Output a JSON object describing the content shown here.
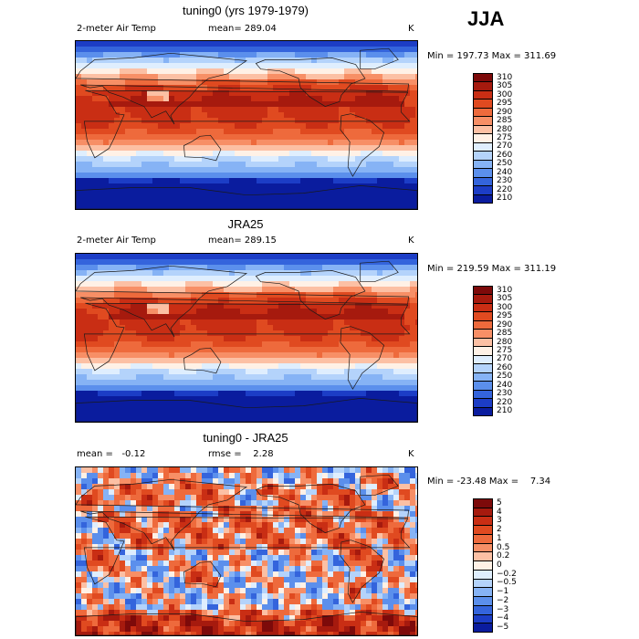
{
  "season_label": "JJA",
  "panels": [
    {
      "title": "tuning0 (yrs 1979-1979)",
      "left_label": "2-meter Air Temp",
      "center_label": "mean= 289.04",
      "right_label": "K",
      "minmax": "Min = 197.73 Max = 311.69"
    },
    {
      "title": "JRA25",
      "left_label": "2-meter Air Temp",
      "center_label": "mean= 289.15",
      "right_label": "K",
      "minmax": "Min = 219.59 Max = 311.19"
    },
    {
      "title": "tuning0 - JRA25",
      "left_label": "mean =   -0.12",
      "center_label": "rmse =    2.28",
      "right_label": "K",
      "minmax": "Min = -23.48 Max =    7.34"
    }
  ],
  "chart_data": [
    {
      "type": "heatmap",
      "title": "tuning0 (yrs 1979-1979)",
      "variable": "2-meter Air Temp",
      "units": "K",
      "mean": 289.04,
      "min": 197.73,
      "max": 311.69,
      "levels": [
        "310",
        "305",
        "300",
        "295",
        "290",
        "285",
        "280",
        "275",
        "270",
        "260",
        "250",
        "240",
        "230",
        "220",
        "210"
      ],
      "colors": [
        "#7d0a0a",
        "#a61a0e",
        "#c92e14",
        "#e04a20",
        "#ee6a3c",
        "#f78f66",
        "#fcc0a4",
        "#fff1e6",
        "#dfeefe",
        "#b4d3fb",
        "#86b3f5",
        "#5b8fec",
        "#3464dc",
        "#1c3dc6",
        "#0a1c9e"
      ]
    },
    {
      "type": "heatmap",
      "title": "JRA25",
      "variable": "2-meter Air Temp",
      "units": "K",
      "mean": 289.15,
      "min": 219.59,
      "max": 311.19,
      "levels": [
        "310",
        "305",
        "300",
        "295",
        "290",
        "285",
        "280",
        "275",
        "270",
        "260",
        "250",
        "240",
        "230",
        "220",
        "210"
      ],
      "colors": [
        "#7d0a0a",
        "#a61a0e",
        "#c92e14",
        "#e04a20",
        "#ee6a3c",
        "#f78f66",
        "#fcc0a4",
        "#fff1e6",
        "#dfeefe",
        "#b4d3fb",
        "#86b3f5",
        "#5b8fec",
        "#3464dc",
        "#1c3dc6",
        "#0a1c9e"
      ]
    },
    {
      "type": "heatmap",
      "title": "tuning0 - JRA25",
      "units": "K",
      "mean": -0.12,
      "rmse": 2.28,
      "min": -23.48,
      "max": 7.34,
      "levels": [
        "5",
        "4",
        "3",
        "2",
        "1",
        "0.5",
        "0.2",
        "0",
        "−0.2",
        "−0.5",
        "−1",
        "−2",
        "−3",
        "−4",
        "−5"
      ],
      "colors": [
        "#7d0a0a",
        "#a61a0e",
        "#c92e14",
        "#e04a20",
        "#ee6a3c",
        "#f78f66",
        "#fcc0a4",
        "#fff1e6",
        "#dfeefe",
        "#b4d3fb",
        "#86b3f5",
        "#5b8fec",
        "#3464dc",
        "#1c3dc6",
        "#0a1c9e"
      ]
    }
  ],
  "colors": {
    "land_outline": "#1a1a1a",
    "frame": "#000000"
  }
}
